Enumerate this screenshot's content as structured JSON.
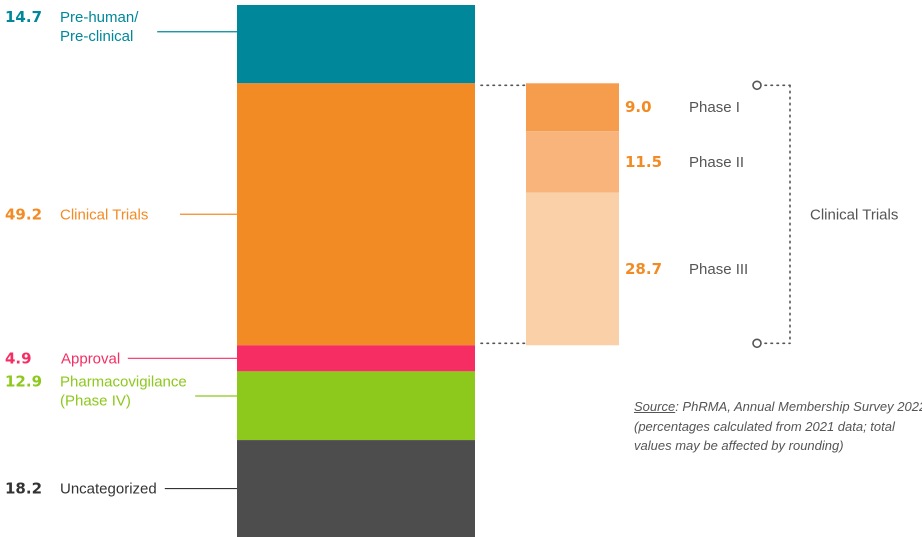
{
  "chart_data": {
    "type": "bar",
    "stacked": true,
    "main_bar": [
      {
        "value": 14.7,
        "value_label": "14.7",
        "label_lines": [
          "Pre-human/",
          "Pre-clinical"
        ],
        "color": "#00889a"
      },
      {
        "value": 49.2,
        "value_label": "49.2",
        "label_lines": [
          "Clinical Trials"
        ],
        "color": "#f38b24"
      },
      {
        "value": 4.9,
        "value_label": "4.9",
        "label_lines": [
          "Approval"
        ],
        "color": "#f52d62"
      },
      {
        "value": 12.9,
        "value_label": "12.9",
        "label_lines": [
          "Pharmacovigilance",
          "(Phase IV)"
        ],
        "color": "#8dc81c"
      },
      {
        "value": 18.2,
        "value_label": "18.2",
        "label_lines": [
          "Uncategorized"
        ],
        "color": "#4d4d4d"
      }
    ],
    "breakdown": {
      "label": "Clinical Trials",
      "segments": [
        {
          "value": 9.0,
          "value_label": "9.0",
          "label": "Phase I",
          "color": "#f59d4c"
        },
        {
          "value": 11.5,
          "value_label": "11.5",
          "label": "Phase II",
          "color": "#f8b47a"
        },
        {
          "value": 28.7,
          "value_label": "28.7",
          "label": "Phase III",
          "color": "#fad0a8"
        }
      ]
    },
    "value_color_breakdown": "#f38b24",
    "label_color_uncategorized": "#333333"
  },
  "source": {
    "label": "Source",
    "text": ": PhRMA, Annual Membership Survey 2022 (percentages calculated from 2021 data; total values may be affected by rounding)"
  }
}
